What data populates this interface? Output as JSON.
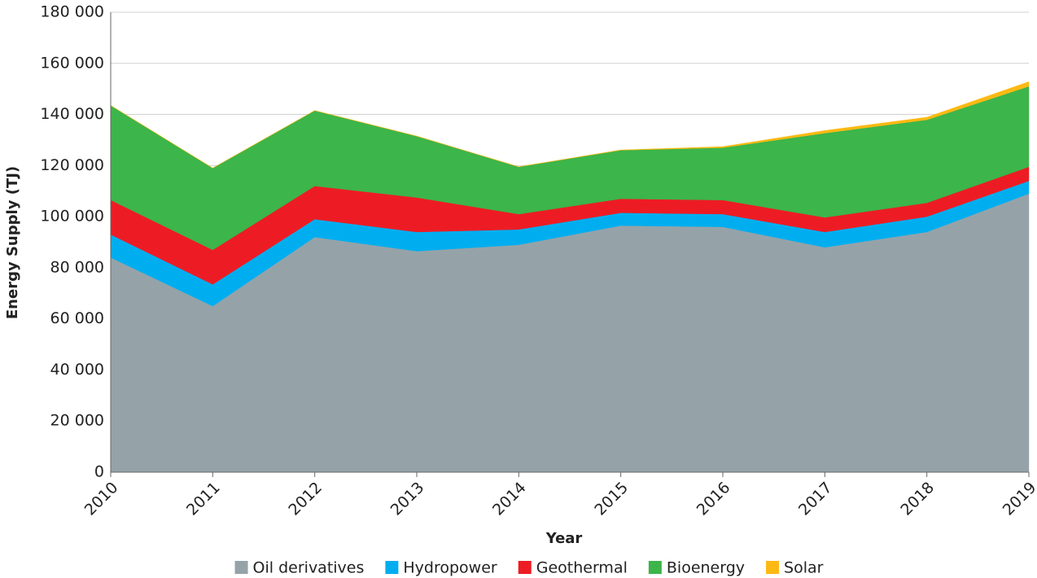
{
  "chart_data": {
    "type": "stacked_area",
    "x_label": "Year",
    "y_label": "Energy Supply (TJ)",
    "categories": [
      "2010",
      "2011",
      "2012",
      "2013",
      "2014",
      "2015",
      "2016",
      "2017",
      "2018",
      "2019"
    ],
    "series": [
      {
        "name": "Oil derivatives",
        "color": "#95a3a9",
        "values": [
          84000,
          65000,
          92000,
          86500,
          89000,
          96500,
          96000,
          88000,
          94000,
          109000
        ]
      },
      {
        "name": "Hydropower",
        "color": "#00aeef",
        "values": [
          9000,
          8500,
          7000,
          7500,
          6000,
          5000,
          5000,
          6000,
          6000,
          5000
        ]
      },
      {
        "name": "Geothermal",
        "color": "#ed1c24",
        "values": [
          13500,
          13500,
          13000,
          13500,
          6000,
          5500,
          5500,
          5700,
          5400,
          5500
        ]
      },
      {
        "name": "Bioenergy",
        "color": "#3cb54a",
        "values": [
          37000,
          32000,
          29500,
          24000,
          18500,
          19000,
          20500,
          33000,
          32500,
          31500
        ]
      },
      {
        "name": "Solar",
        "color": "#fdb913",
        "values": [
          0,
          0,
          0,
          0,
          0,
          100,
          400,
          1000,
          1000,
          1800
        ]
      }
    ],
    "ylim": [
      0,
      180000
    ],
    "yticks": [
      0,
      {
        "value": 20000,
        "label": "20 000"
      },
      {
        "value": 40000,
        "label": "40 000"
      },
      {
        "value": 60000,
        "label": "60 000"
      },
      {
        "value": 80000,
        "label": "80 000"
      },
      {
        "value": 100000,
        "label": "100 000"
      },
      {
        "value": 120000,
        "label": "120 000"
      },
      {
        "value": 140000,
        "label": "140 000"
      },
      {
        "value": 160000,
        "label": "160 000"
      },
      {
        "value": 180000,
        "label": "180 000"
      }
    ],
    "grid": true,
    "legend": "bottom"
  }
}
